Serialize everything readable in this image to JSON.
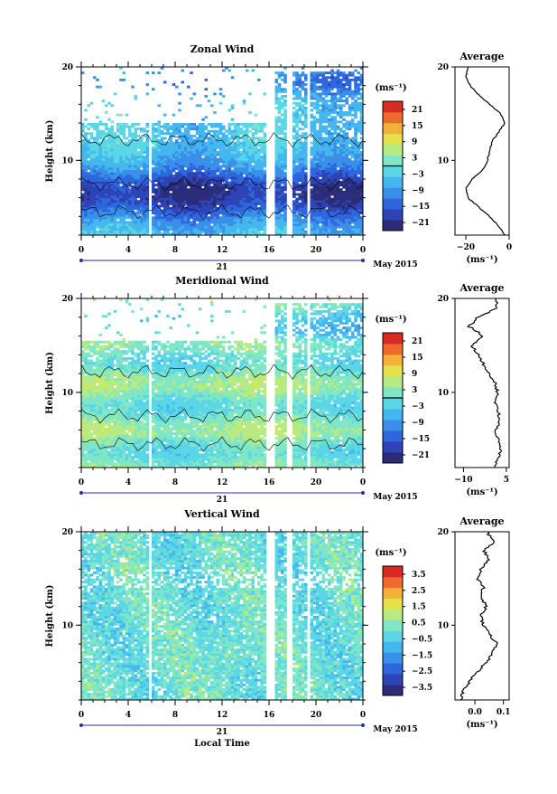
{
  "date_label": "May 2015",
  "day_label": "21",
  "x_axis_label": "Local Time",
  "colors": {
    "scale": [
      "#2b2d7a",
      "#2c44b5",
      "#2e66de",
      "#3a8fe9",
      "#44b7ee",
      "#5bd6e6",
      "#7fe6c6",
      "#b6ea82",
      "#e4e24a",
      "#f4b13a",
      "#ef6a2e",
      "#d92b22"
    ]
  },
  "chart_data": [
    {
      "type": "heatmap",
      "title": "Zonal Wind",
      "ylabel": "Height (km)",
      "x_ticks": [
        "0",
        "4",
        "8",
        "12",
        "16",
        "20",
        "0"
      ],
      "x_range_hours": [
        0,
        24
      ],
      "y_ticks": [
        "20",
        "10"
      ],
      "y_range_km": [
        2,
        20
      ],
      "colorbar": {
        "unit": "(ms⁻¹)",
        "range": [
          -24,
          24
        ],
        "tick_values": [
          21,
          15,
          9,
          3,
          -3,
          -9,
          -15,
          -21
        ],
        "tick_labels": [
          "21",
          "15",
          "9",
          "3",
          "−3",
          "−9",
          "−15",
          "−21"
        ],
        "zero_line": true
      },
      "data_gaps_hours": [
        [
          5.8,
          6.0
        ],
        [
          15.8,
          16.5
        ],
        [
          17.6,
          17.9
        ],
        [
          19.3,
          19.6
        ]
      ],
      "average_profile": {
        "title": "Average",
        "x_ticks": [
          "−20",
          "0"
        ],
        "x_range": [
          -25,
          0
        ],
        "xlabel": "(ms⁻¹)",
        "y_ticks": [
          "20",
          "10"
        ],
        "heights": [
          2,
          3,
          4,
          5,
          6,
          7,
          8,
          9,
          10,
          11,
          12,
          13,
          14,
          15,
          16,
          17,
          18,
          19,
          20
        ],
        "values": [
          -2,
          -5,
          -9,
          -14,
          -19,
          -20,
          -17,
          -12,
          -10,
          -9,
          -8,
          -5,
          -2,
          -4,
          -9,
          -14,
          -18,
          -20,
          -19
        ]
      }
    },
    {
      "type": "heatmap",
      "title": "Meridional Wind",
      "ylabel": "Height (km)",
      "x_ticks": [
        "0",
        "4",
        "8",
        "12",
        "16",
        "20",
        "0"
      ],
      "x_range_hours": [
        0,
        24
      ],
      "y_ticks": [
        "20",
        "10"
      ],
      "y_range_km": [
        2,
        20
      ],
      "colorbar": {
        "unit": "(ms⁻¹)",
        "range": [
          -24,
          24
        ],
        "tick_values": [
          21,
          15,
          9,
          3,
          -3,
          -9,
          -15,
          -21
        ],
        "tick_labels": [
          "21",
          "15",
          "9",
          "3",
          "−3",
          "−9",
          "−15",
          "−21"
        ],
        "zero_line": true
      },
      "data_gaps_hours": [
        [
          5.8,
          6.0
        ],
        [
          15.8,
          16.5
        ],
        [
          17.6,
          17.9
        ],
        [
          19.3,
          19.6
        ]
      ],
      "average_profile": {
        "title": "Average",
        "x_ticks": [
          "−10",
          "5"
        ],
        "x_range": [
          -13,
          6
        ],
        "xlabel": "(ms⁻¹)",
        "y_ticks": [
          "20",
          "10"
        ],
        "heights": [
          2,
          3,
          4,
          5,
          6,
          7,
          8,
          9,
          10,
          11,
          12,
          13,
          14,
          15,
          16,
          17,
          18,
          19,
          20
        ],
        "values": [
          1,
          2,
          3,
          2,
          1,
          3,
          2,
          1,
          2,
          1,
          -1,
          -3,
          -5,
          -7,
          -3,
          -8,
          -5,
          2,
          1
        ]
      }
    },
    {
      "type": "heatmap",
      "title": "Vertical Wind",
      "ylabel": "Height (km)",
      "xlabel": "Local Time",
      "x_ticks": [
        "0",
        "4",
        "8",
        "12",
        "16",
        "20",
        "0"
      ],
      "x_range_hours": [
        0,
        24
      ],
      "y_ticks": [
        "20",
        "10"
      ],
      "y_range_km": [
        2,
        20
      ],
      "colorbar": {
        "unit": "(ms⁻¹)",
        "range": [
          -4,
          4
        ],
        "tick_values": [
          3.5,
          2.5,
          1.5,
          0.5,
          -0.5,
          -1.5,
          -2.5,
          -3.5
        ],
        "tick_labels": [
          "3.5",
          "2.5",
          "1.5",
          "0.5",
          "−0.5",
          "−1.5",
          "−2.5",
          "−3.5"
        ],
        "zero_line": false
      },
      "data_gaps_hours": [
        [
          5.8,
          6.0
        ],
        [
          15.8,
          16.5
        ],
        [
          17.6,
          17.9
        ],
        [
          19.3,
          19.6
        ]
      ],
      "average_profile": {
        "title": "Average",
        "x_ticks": [
          "0.0",
          "0.1"
        ],
        "x_range": [
          -0.07,
          0.12
        ],
        "xlabel": "(ms⁻¹)",
        "y_ticks": [
          "20",
          "10"
        ],
        "heights": [
          2,
          3,
          4,
          5,
          6,
          7,
          8,
          9,
          10,
          11,
          12,
          13,
          14,
          15,
          16,
          17,
          18,
          19,
          20
        ],
        "values": [
          -0.05,
          -0.04,
          -0.02,
          0.01,
          0.04,
          0.06,
          0.08,
          0.05,
          0.03,
          0.02,
          0.04,
          0.02,
          0.03,
          0.01,
          0.02,
          0.05,
          0.03,
          0.07,
          0.04
        ]
      }
    }
  ]
}
